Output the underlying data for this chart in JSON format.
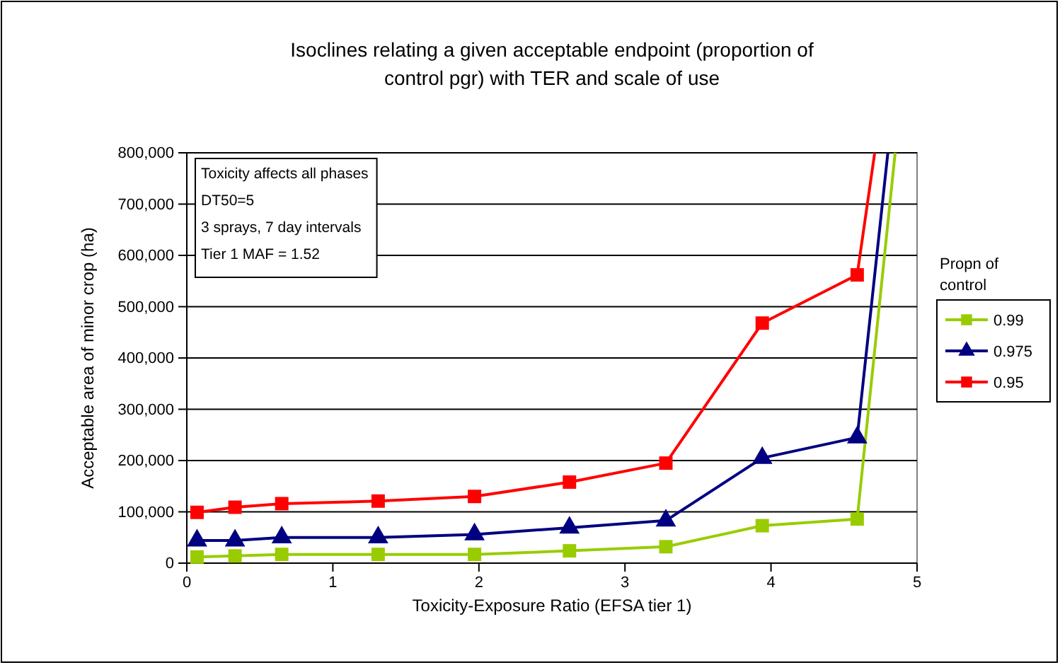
{
  "chart_data": {
    "type": "line",
    "title": "Isoclines relating a given acceptable endpoint (proportion of control pgr) with TER and scale of use",
    "xlabel": "Toxicity-Exposure Ratio (EFSA tier 1)",
    "ylabel": "Acceptable area of minor crop (ha)",
    "legend_title": "Propn of control",
    "legend": "right",
    "grid": "y",
    "xlim": [
      0,
      5
    ],
    "xticks": [
      0,
      1,
      2,
      3,
      4,
      5
    ],
    "ylim": [
      0,
      800000
    ],
    "yticks": [
      {
        "value": 0,
        "label": "0"
      },
      {
        "value": 100000,
        "label": "100,000"
      },
      {
        "value": 200000,
        "label": "200,000"
      },
      {
        "value": 300000,
        "label": "300,000"
      },
      {
        "value": 400000,
        "label": "400,000"
      },
      {
        "value": 500000,
        "label": "500,000"
      },
      {
        "value": 600000,
        "label": "600,000"
      },
      {
        "value": 700000,
        "label": "700,000"
      },
      {
        "value": 800000,
        "label": "800,000"
      }
    ],
    "annotations": [
      "Toxicity affects all phases",
      "DT50=5",
      "3 sprays, 7 day intervals",
      "Tier 1 MAF = 1.52"
    ],
    "series": [
      {
        "name": "0.99",
        "color": "#99cc00",
        "marker": "square",
        "x": [
          0.07,
          0.33,
          0.65,
          1.31,
          1.97,
          2.62,
          3.28,
          3.94,
          4.59,
          4.85
        ],
        "values": [
          12000,
          14000,
          17000,
          17000,
          17000,
          24000,
          32000,
          73000,
          86000,
          800000
        ]
      },
      {
        "name": "0.975",
        "color": "#000080",
        "marker": "triangle",
        "x": [
          0.07,
          0.33,
          0.65,
          1.31,
          1.97,
          2.62,
          3.28,
          3.94,
          4.59,
          4.8
        ],
        "values": [
          44000,
          44000,
          50000,
          50000,
          56000,
          69000,
          83000,
          205000,
          245000,
          800000
        ]
      },
      {
        "name": "0.95",
        "color": "#ff0000",
        "marker": "square",
        "x": [
          0.07,
          0.33,
          0.65,
          1.31,
          1.97,
          2.62,
          3.28,
          3.94,
          4.59,
          4.71
        ],
        "values": [
          99000,
          109000,
          116000,
          121000,
          130000,
          158000,
          195000,
          468000,
          562000,
          800000
        ]
      }
    ]
  }
}
